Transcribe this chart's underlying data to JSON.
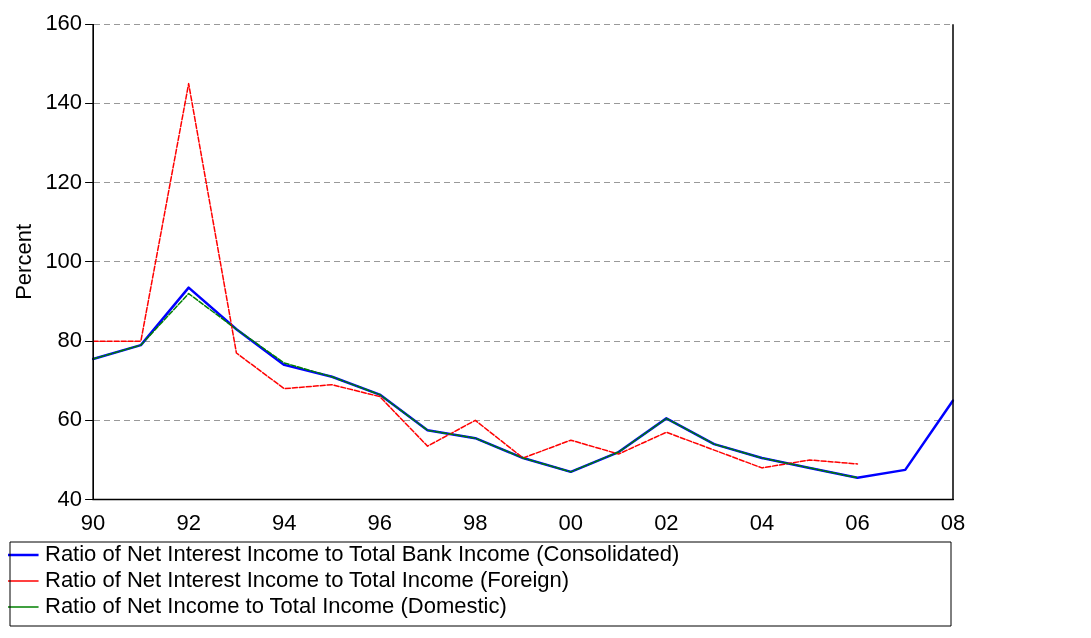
{
  "chart_data": {
    "type": "line",
    "ylabel": "Percent",
    "categories": [
      "90",
      null,
      "92",
      null,
      "94",
      null,
      "96",
      null,
      "98",
      null,
      "00",
      null,
      "02",
      null,
      "04",
      null,
      "06",
      null,
      "08"
    ],
    "series": [
      {
        "name": "Ratio of Net Interest Income to Total Bank Income (Consolidated)",
        "color": "#0000ff",
        "line_style": "solid",
        "values": [
          75.5,
          79,
          93.5,
          83,
          74,
          71,
          66.5,
          57.5,
          55.5,
          50.5,
          47,
          52,
          60.5,
          54,
          50.5,
          48,
          45.5,
          47.5,
          65
        ]
      },
      {
        "name": "Ratio of Net Interest Income to Total Income (Foreign)",
        "color": "#ff0000",
        "line_style": "dashed",
        "values": [
          80,
          80,
          145,
          77,
          68,
          69,
          66,
          53.5,
          60,
          50.5,
          55,
          51.5,
          57,
          52.5,
          48,
          50,
          49,
          null,
          null
        ]
      },
      {
        "name": "Ratio of Net Income to Total Income (Domestic)",
        "color": "#008000",
        "line_style": "dashed",
        "values": [
          75.5,
          79,
          92,
          83,
          74.5,
          71,
          66.5,
          57.5,
          55.5,
          50.5,
          47,
          52,
          60.5,
          54,
          50.5,
          48,
          45.5,
          null,
          null
        ]
      }
    ],
    "ylim": [
      40,
      160
    ],
    "yticks": [
      40,
      60,
      80,
      100,
      120,
      140,
      160
    ],
    "grid": "y",
    "legend": "bottom",
    "marker": "none"
  }
}
